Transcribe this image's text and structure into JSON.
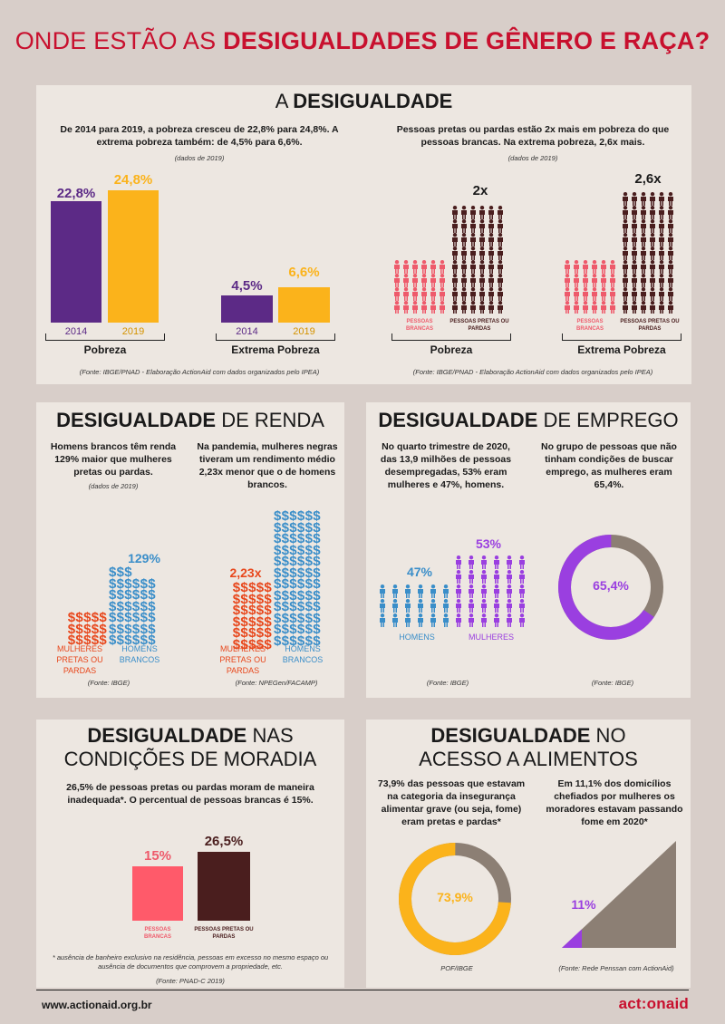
{
  "title": {
    "normal": "ONDE ESTÃO AS ",
    "bold": "DESIGUALDADES DE GÊNERO E RAÇA?"
  },
  "colors": {
    "purple": "#5c2a86",
    "yellow": "#fbb31b",
    "red": "#c8102e",
    "pink": "#ee5a6b",
    "brown": "#4a1e1e",
    "blue": "#3a8ec9",
    "violet": "#9a3fe0",
    "taupe": "#8c7f74",
    "orange_red": "#e8471c"
  },
  "s1": {
    "title_normal": "A ",
    "title_bold": "DESIGUALDADE",
    "left_text": "De 2014 para 2019, a pobreza cresceu de 22,8% para 24,8%. A extrema pobreza também: de 4,5% para 6,6%.",
    "left_note": "(dados de 2019)",
    "right_text": "Pessoas pretas ou pardas estão 2x mais em pobreza do que pessoas brancas. Na extrema pobreza, 2,6x mais.",
    "right_note": "(dados de 2019)",
    "pobreza": {
      "v2014": "22,8%",
      "v2019": "24,8%",
      "l2014": "2014",
      "l2019": "2019",
      "label": "Pobreza"
    },
    "extrema": {
      "v2014": "4,5%",
      "v2019": "6,6%",
      "l2014": "2014",
      "l2019": "2019",
      "label": "Extrema Pobreza"
    },
    "people_pobreza": {
      "mult": "2x",
      "white": "PESSOAS BRANCAS",
      "black": "PESSOAS PRETAS OU PARDAS",
      "label": "Pobreza"
    },
    "people_extrema": {
      "mult": "2,6x",
      "white": "PESSOAS BRANCAS",
      "black": "PESSOAS PRETAS OU PARDAS",
      "label": "Extrema Pobreza"
    },
    "source_left": "(Fonte: IBGE/PNAD - Elaboração ActionAid com dados organizados pelo IPEA)",
    "source_right": "(Fonte: IBGE/PNAD - Elaboração ActionAid com dados organizados pelo IPEA)"
  },
  "s2": {
    "title_bold": "DESIGUALDADE",
    "title_normal": " DE RENDA",
    "text1": "Homens brancos têm renda 129% maior que mulheres pretas ou pardas.",
    "note1": "(dados de 2019)",
    "text2": "Na pandemia, mulheres negras tiveram um rendimento médio 2,23x menor que o de homens brancos.",
    "val_129": "129%",
    "val_223": "2,23x",
    "cap_women1": "MULHERES PRETAS OU PARDAS",
    "cap_men1": "HOMENS BRANCOS",
    "cap_women2": "MULHERES PRETAS OU PARDAS",
    "cap_men2": "HOMENS BRANCOS",
    "source1": "(Fonte: IBGE)",
    "source2": "(Fonte: NPEGen/FACAMP)",
    "dollar_row": "$$$$$",
    "dollar_row6": "$$$$$$",
    "dollar_3": "$$$"
  },
  "s3": {
    "title_bold": "DESIGUALDADE",
    "title_normal": " DE EMPREGO",
    "text1": "No quarto trimestre de 2020, das 13,9 milhões de pessoas desempregadas, 53% eram mulheres e 47%, homens.",
    "text2": "No grupo de pessoas que não tinham condições de buscar emprego, as mulheres eram 65,4%.",
    "val_47": "47%",
    "val_53": "53%",
    "cap_men": "HOMENS",
    "cap_women": "MULHERES",
    "donut_value": 65.4,
    "donut_label": "65,4%",
    "source1": "(Fonte: IBGE)",
    "source2": "(Fonte: IBGE)"
  },
  "s4": {
    "title_bold": "DESIGUALDADE",
    "title_normal": " NAS",
    "title_line2": "CONDIÇÕES DE MORADIA",
    "text": "26,5% de pessoas pretas ou pardas moram de maneira inadequada*. O percentual de pessoas brancas é 15%.",
    "val_white": "15%",
    "val_black": "26,5%",
    "cap_white": "PESSOAS BRANCAS",
    "cap_black": "PESSOAS PRETAS OU PARDAS",
    "footnote": "* ausência de banheiro exclusivo na residência, pessoas em excesso no mesmo espaço ou ausência de documentos que comprovem a propriedade, etc.",
    "source": "(Fonte: PNAD-C 2019)"
  },
  "s5": {
    "title_bold": "DESIGUALDADE",
    "title_normal": " NO",
    "title_line2": "ACESSO A ALIMENTOS",
    "text1": "73,9% das pessoas que estavam na categoria da insegurança alimentar grave (ou seja, fome) eram pretas e pardas*",
    "text2": "Em 11,1% dos domicílios chefiados por mulheres os moradores estavam passando fome em 2020*",
    "donut_value": 73.9,
    "donut_label": "73,9%",
    "tri_label": "11%",
    "source1": "POF/IBGE",
    "source2": "(Fonte: Rede Penssan com ActionAid)"
  },
  "footer": {
    "url": "www.actionaid.org.br",
    "logo": "act:onaid"
  }
}
